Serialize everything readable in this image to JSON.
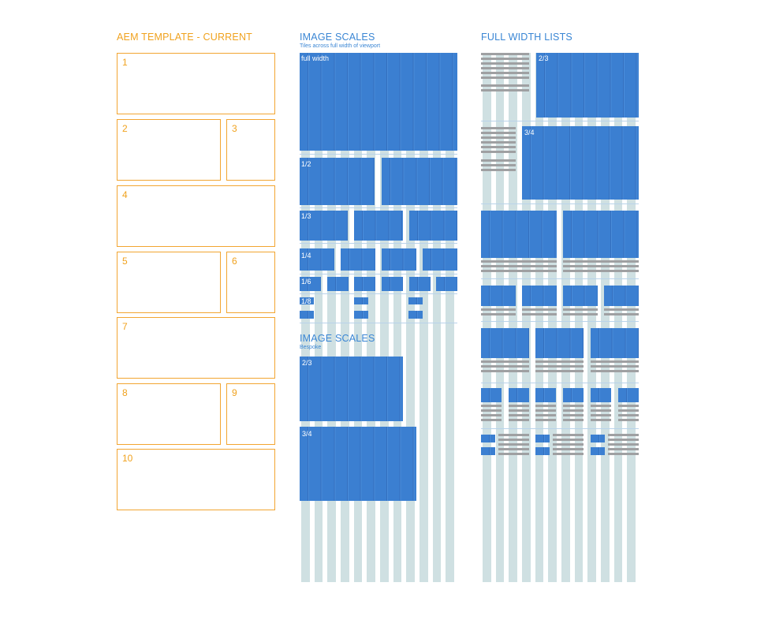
{
  "template": {
    "title": "AEM TEMPLATE - CURRENT",
    "boxes": [
      "1",
      "2",
      "3",
      "4",
      "5",
      "6",
      "7",
      "8",
      "9",
      "10"
    ]
  },
  "image_scales": {
    "title": "IMAGE SCALES",
    "subtitle": "Tiles across full width of viewport",
    "labels": [
      "full width",
      "1/2",
      "1/3",
      "1/4",
      "1/6",
      "1/8"
    ]
  },
  "bespoke": {
    "title": "IMAGE SCALES",
    "subtitle": "Bespoke",
    "labels": [
      "2/3",
      "3/4"
    ]
  },
  "full_width_lists": {
    "title": "FULL WIDTH LISTS",
    "labels": [
      "2/3",
      "3/4"
    ]
  },
  "colors": {
    "orange": "#f0a21e",
    "blue": "#3b7fd1",
    "column": "#cfe0e2",
    "gray": "#9fa0a2"
  }
}
